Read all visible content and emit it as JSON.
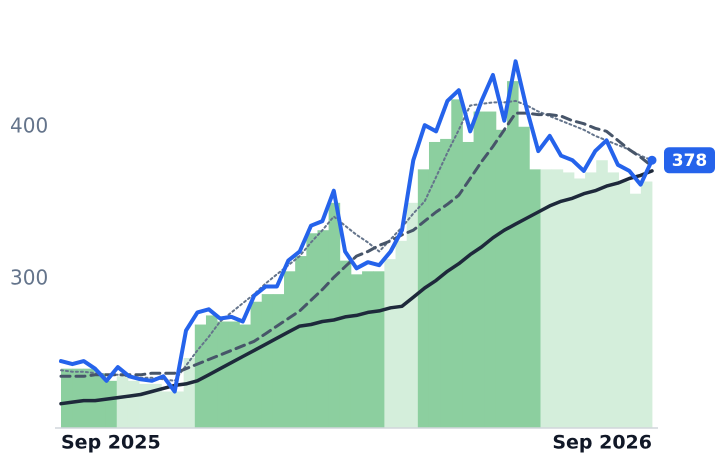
{
  "chart_data": {
    "type": "line",
    "categories": [
      "Sep 2025",
      null,
      null,
      null,
      null,
      null,
      null,
      null,
      null,
      null,
      null,
      null,
      null,
      null,
      null,
      null,
      null,
      null,
      null,
      null,
      null,
      null,
      null,
      null,
      null,
      null,
      null,
      null,
      null,
      null,
      null,
      null,
      null,
      null,
      null,
      null,
      null,
      null,
      null,
      null,
      null,
      null,
      null,
      null,
      null,
      null,
      null,
      null,
      null,
      null,
      null,
      null,
      "Sep 2026"
    ],
    "ylim": [
      202,
      482
    ],
    "yticks": [
      300,
      400
    ],
    "bars": {
      "values": [
        241,
        241,
        241,
        238,
        233,
        236,
        233,
        231,
        231,
        226,
        226,
        248,
        270,
        276,
        272,
        272,
        270,
        285,
        290,
        290,
        305,
        315,
        330,
        332,
        350,
        312,
        303,
        305,
        305,
        313,
        325,
        350,
        372,
        390,
        392,
        418,
        390,
        410,
        410,
        398,
        430,
        400,
        372,
        372,
        372,
        370,
        366,
        370,
        378,
        370,
        364,
        356,
        364
      ],
      "colors": [
        "#8ccf9f",
        "#8ccf9f",
        "#8ccf9f",
        "#8ccf9f",
        "#8ccf9f",
        "#d4eedb",
        "#d4eedb",
        "#d4eedb",
        "#d4eedb",
        "#d4eedb",
        "#d4eedb",
        "#d4eedb",
        "#8ccf9f",
        "#8ccf9f",
        "#8ccf9f",
        "#8ccf9f",
        "#8ccf9f",
        "#8ccf9f",
        "#8ccf9f",
        "#8ccf9f",
        "#8ccf9f",
        "#8ccf9f",
        "#8ccf9f",
        "#8ccf9f",
        "#8ccf9f",
        "#8ccf9f",
        "#8ccf9f",
        "#8ccf9f",
        "#8ccf9f",
        "#d4eedb",
        "#d4eedb",
        "#d4eedb",
        "#8ccf9f",
        "#8ccf9f",
        "#8ccf9f",
        "#8ccf9f",
        "#8ccf9f",
        "#8ccf9f",
        "#8ccf9f",
        "#8ccf9f",
        "#8ccf9f",
        "#8ccf9f",
        "#8ccf9f",
        "#d4eedb",
        "#d4eedb",
        "#d4eedb",
        "#d4eedb",
        "#d4eedb",
        "#d4eedb",
        "#d4eedb",
        "#d4eedb",
        "#d4eedb",
        "#d4eedb"
      ]
    },
    "series": [
      {
        "color": "#64748b",
        "dash": "dotted",
        "width": 2,
        "values": [
          240,
          239,
          239,
          238,
          237,
          237,
          236,
          235,
          235,
          234,
          233,
          243,
          253,
          262,
          272,
          278,
          284,
          290,
          297,
          303,
          309,
          315,
          324,
          332,
          341,
          335,
          329,
          324,
          318,
          326,
          334,
          343,
          351,
          367,
          383,
          398,
          414,
          415,
          416,
          416,
          417,
          414,
          410,
          407,
          404,
          401,
          398,
          394,
          391,
          388,
          385,
          381,
          378
        ]
      },
      {
        "color": "#475569",
        "dash": "dashed",
        "width": 3,
        "values": [
          236,
          236,
          236,
          237,
          237,
          237,
          237,
          237,
          238,
          238,
          238,
          241,
          244,
          247,
          250,
          253,
          256,
          259,
          264,
          269,
          274,
          279,
          286,
          293,
          301,
          308,
          315,
          318,
          322,
          325,
          329,
          332,
          338,
          344,
          349,
          355,
          366,
          377,
          387,
          398,
          409,
          409,
          408,
          408,
          407,
          404,
          402,
          399,
          397,
          391,
          385,
          380,
          374
        ]
      },
      {
        "color": "#1e293b",
        "dash": "solid",
        "width": 3.5,
        "values": [
          218,
          219,
          220,
          220,
          221,
          222,
          223,
          224,
          226,
          228,
          230,
          231,
          233,
          237,
          241,
          245,
          249,
          253,
          257,
          261,
          265,
          269,
          270,
          272,
          273,
          275,
          276,
          278,
          279,
          281,
          282,
          288,
          294,
          299,
          305,
          310,
          316,
          321,
          327,
          332,
          336,
          340,
          344,
          348,
          351,
          353,
          356,
          358,
          361,
          363,
          366,
          368,
          371
        ]
      },
      {
        "color": "#2563eb",
        "dash": "solid",
        "width": 4,
        "last_label": true,
        "values": [
          246,
          244,
          246,
          241,
          233,
          242,
          236,
          234,
          233,
          236,
          226,
          266,
          278,
          280,
          274,
          275,
          272,
          289,
          295,
          295,
          312,
          318,
          335,
          338,
          358,
          318,
          307,
          311,
          309,
          318,
          332,
          378,
          401,
          397,
          417,
          424,
          397,
          417,
          434,
          404,
          443,
          411,
          384,
          394,
          381,
          378,
          371,
          384,
          391,
          375,
          371,
          362,
          378
        ]
      }
    ]
  }
}
